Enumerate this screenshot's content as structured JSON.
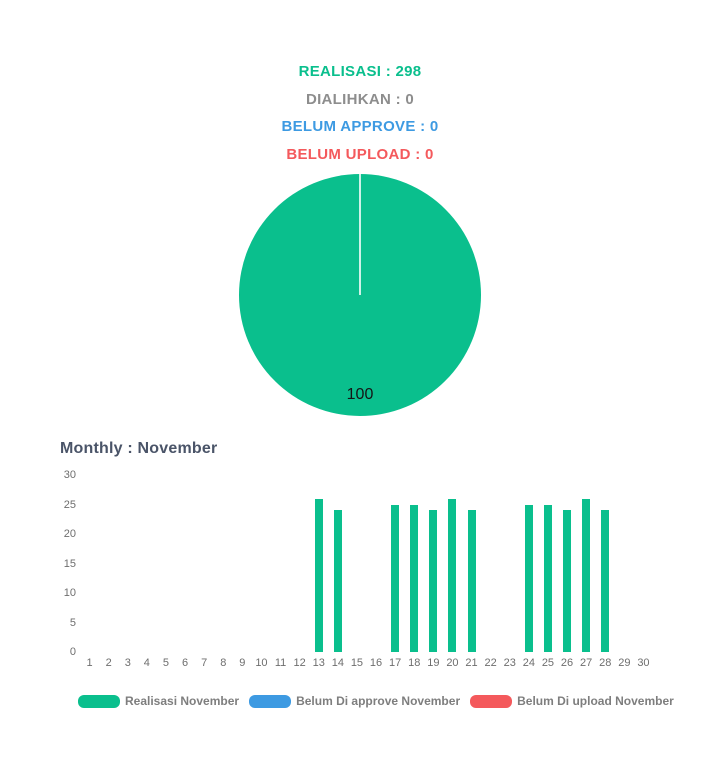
{
  "colors": {
    "green": "#0abf8d",
    "blue": "#3d9ae2",
    "red": "#f4595c",
    "stat_gray": "#8d8d8d",
    "title_slate": "#4a5468",
    "axis_gray": "#6e6e6e",
    "legend_text": "#7e7e7e",
    "pie_slice_border": "rgba(255,255,255,0.8)"
  },
  "stats": {
    "realisasi": "REALISASI : 298",
    "dialihkan": "DIALIHKAN : 0",
    "belum_approve": "BELUM APPROVE : 0",
    "belum_upload": "BELUM UPLOAD : 0"
  },
  "pie": {
    "slice_label": "100"
  },
  "monthly": {
    "title": "Monthly : November"
  },
  "chart_data": [
    {
      "type": "pie",
      "title": "",
      "labels": [
        "Realisasi"
      ],
      "values": [
        100
      ],
      "data_labels": [
        "100"
      ],
      "colors": [
        "#0abf8d"
      ],
      "legend_position": "none"
    },
    {
      "type": "bar",
      "title": "Monthly : November",
      "xlabel": "",
      "ylabel": "",
      "ylim": [
        0,
        30
      ],
      "yticks": [
        0,
        5,
        10,
        15,
        20,
        25,
        30
      ],
      "grid": false,
      "legend_position": "bottom",
      "categories": [
        1,
        2,
        3,
        4,
        5,
        6,
        7,
        8,
        9,
        10,
        11,
        12,
        13,
        14,
        15,
        16,
        17,
        18,
        19,
        20,
        21,
        22,
        23,
        24,
        25,
        26,
        27,
        28,
        29,
        30
      ],
      "series": [
        {
          "name": "Realisasi November",
          "color": "#0abf8d",
          "values": [
            0,
            0,
            0,
            0,
            0,
            0,
            0,
            0,
            0,
            0,
            0,
            0,
            26,
            24,
            0,
            0,
            25,
            25,
            24,
            26,
            24,
            0,
            0,
            25,
            25,
            24,
            26,
            24,
            0,
            0
          ]
        },
        {
          "name": "Belum Di approve November",
          "color": "#3d9ae2",
          "values": [
            0,
            0,
            0,
            0,
            0,
            0,
            0,
            0,
            0,
            0,
            0,
            0,
            0,
            0,
            0,
            0,
            0,
            0,
            0,
            0,
            0,
            0,
            0,
            0,
            0,
            0,
            0,
            0,
            0,
            0
          ]
        },
        {
          "name": "Belum Di upload November",
          "color": "#f4595c",
          "values": [
            0,
            0,
            0,
            0,
            0,
            0,
            0,
            0,
            0,
            0,
            0,
            0,
            0,
            0,
            0,
            0,
            0,
            0,
            0,
            0,
            0,
            0,
            0,
            0,
            0,
            0,
            0,
            0,
            0,
            0
          ]
        }
      ]
    }
  ]
}
